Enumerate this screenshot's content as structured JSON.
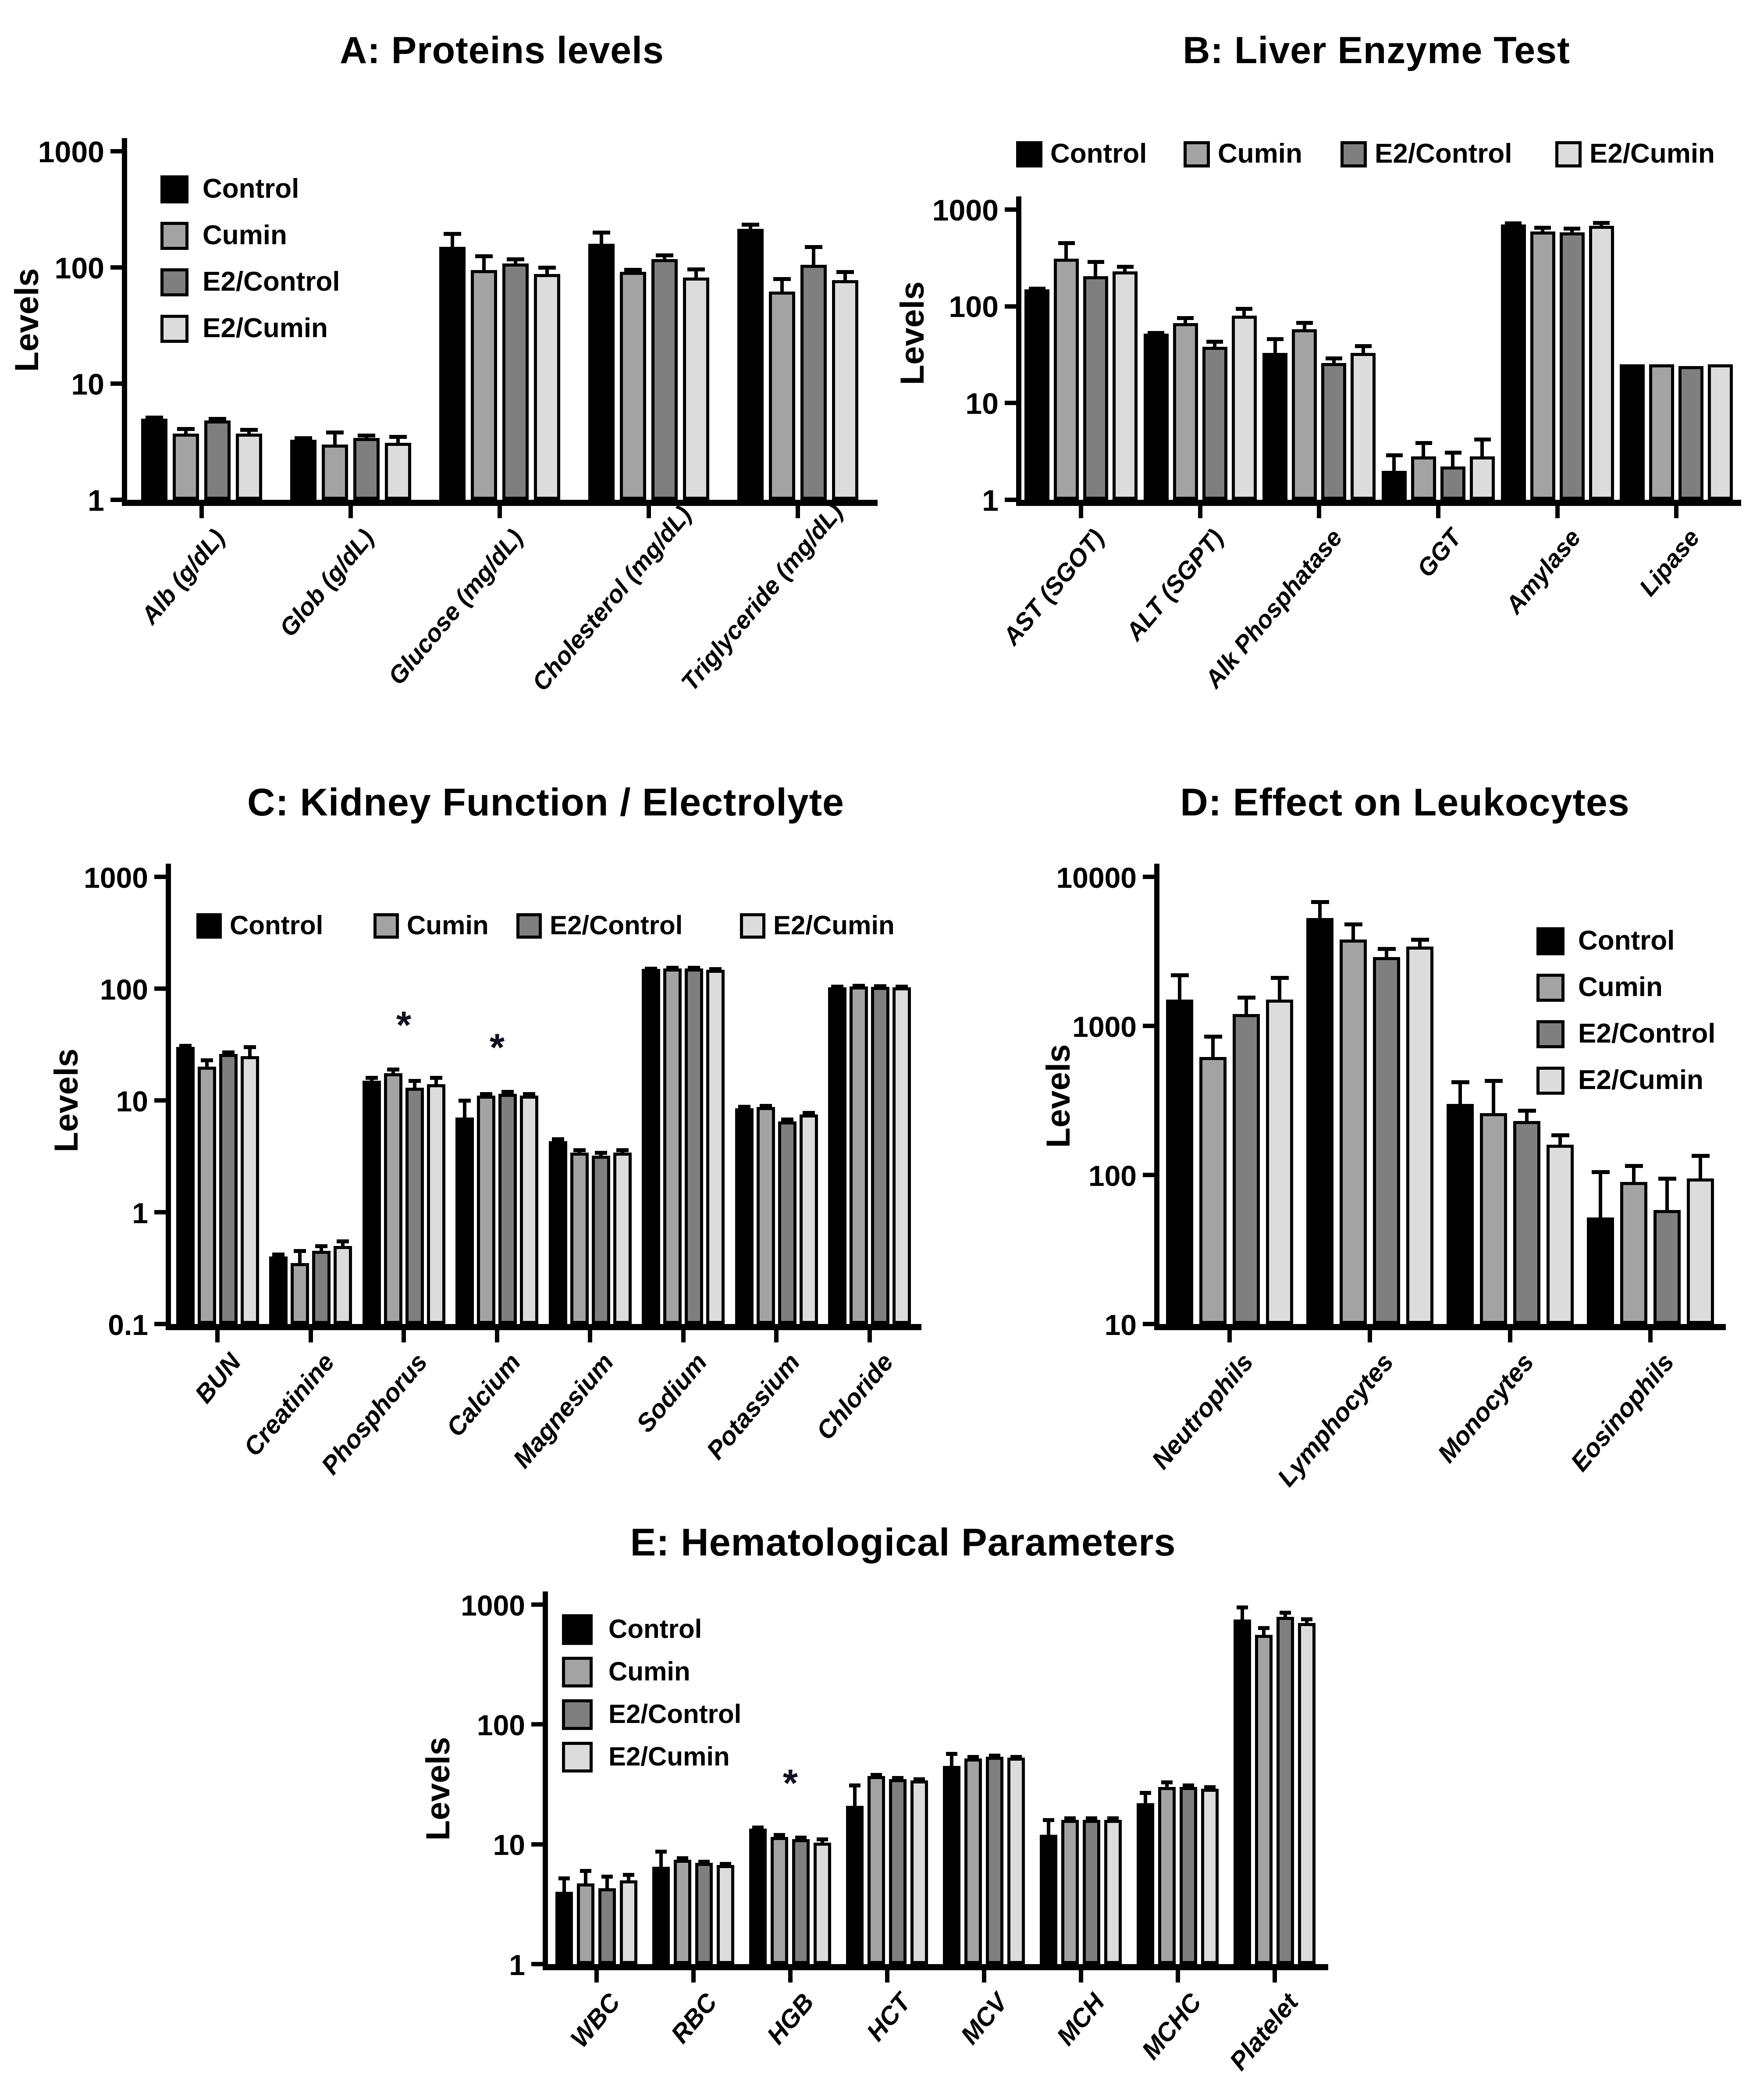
{
  "figure": {
    "background": "#ffffff",
    "text_color": "#000000",
    "annotation_symbol": "*",
    "series_colors": {
      "Control": "#000000",
      "Cumin": "#a3a3a3",
      "E2/Control": "#7f7f7f",
      "E2/Cumin": "#dcdcdc"
    }
  },
  "chart_data": [
    {
      "id": "A",
      "type": "bar",
      "title": "A: Proteins levels",
      "ylabel": "Levels",
      "yscale": "log",
      "ylim": [
        1,
        1000
      ],
      "yticks": [
        1,
        10,
        100,
        1000
      ],
      "ytick_labels": [
        "1",
        "10",
        "100",
        "1000"
      ],
      "grid": false,
      "legend": {
        "orientation": "vertical",
        "position": "inside-top-left",
        "entries": [
          "Control",
          "Cumin",
          "E2/Control",
          "E2/Cumin"
        ]
      },
      "categories": [
        "Alb (g/dL)",
        "Glob (g/dL)",
        "Glucose (mg/dL)",
        "Cholesterol (mg/dL)",
        "Triglyceride (mg/dL)"
      ],
      "series": [
        {
          "name": "Control",
          "color": "#000000",
          "values": [
            5.0,
            3.3,
            150,
            160,
            215
          ],
          "errors_upper": [
            5.1,
            3.4,
            195,
            200,
            235
          ]
        },
        {
          "name": "Cumin",
          "color": "#a3a3a3",
          "values": [
            3.7,
            3.0,
            95,
            92,
            62
          ],
          "errors_upper": [
            4.1,
            3.8,
            125,
            96,
            80
          ]
        },
        {
          "name": "E2/Control",
          "color": "#7f7f7f",
          "values": [
            4.8,
            3.4,
            108,
            118,
            105
          ],
          "errors_upper": [
            5.0,
            3.6,
            118,
            128,
            150
          ]
        },
        {
          "name": "E2/Cumin",
          "color": "#dcdcdc",
          "values": [
            3.7,
            3.1,
            88,
            82,
            78
          ],
          "errors_upper": [
            4.0,
            3.5,
            100,
            97,
            92
          ]
        }
      ],
      "annotations": []
    },
    {
      "id": "B",
      "type": "bar",
      "title": "B: Liver Enzyme Test",
      "ylabel": "Levels",
      "yscale": "log",
      "ylim": [
        1,
        1000
      ],
      "yticks": [
        1,
        10,
        100,
        1000
      ],
      "ytick_labels": [
        "1",
        "10",
        "100",
        "1000"
      ],
      "grid": false,
      "legend": {
        "orientation": "horizontal",
        "position": "above-plot",
        "entries": [
          "Control",
          "Cumin",
          "E2/Control",
          "E2/Cumin"
        ]
      },
      "categories": [
        "AST (SGOT)",
        "ALT (SGPT)",
        "Alk Phosphatase",
        "GGT",
        "Amylase",
        "Lipase"
      ],
      "series": [
        {
          "name": "Control",
          "color": "#000000",
          "values": [
            150,
            52,
            33,
            2.0,
            700,
            25
          ],
          "errors_upper": [
            152,
            53,
            46,
            2.9,
            720,
            25
          ]
        },
        {
          "name": "Cumin",
          "color": "#a3a3a3",
          "values": [
            310,
            67,
            58,
            2.8,
            590,
            25
          ],
          "errors_upper": [
            450,
            76,
            68,
            3.9,
            650,
            25
          ]
        },
        {
          "name": "E2/Control",
          "color": "#7f7f7f",
          "values": [
            205,
            38,
            26,
            2.2,
            580,
            24
          ],
          "errors_upper": [
            290,
            43,
            29,
            3.1,
            640,
            24
          ]
        },
        {
          "name": "E2/Cumin",
          "color": "#dcdcdc",
          "values": [
            230,
            80,
            33,
            2.8,
            680,
            25
          ],
          "errors_upper": [
            258,
            95,
            39,
            4.2,
            730,
            25
          ]
        }
      ],
      "annotations": []
    },
    {
      "id": "C",
      "type": "bar",
      "title": "C: Kidney Function / Electrolyte",
      "ylabel": "Levels",
      "yscale": "log",
      "ylim": [
        0.1,
        1000
      ],
      "yticks": [
        0.1,
        1,
        10,
        100,
        1000
      ],
      "ytick_labels": [
        "0.1",
        "1",
        "10",
        "100",
        "1000"
      ],
      "grid": false,
      "legend": {
        "orientation": "horizontal",
        "position": "inside-top",
        "entries": [
          "Control",
          "Cumin",
          "E2/Control",
          "E2/Cumin"
        ]
      },
      "categories": [
        "BUN",
        "Creatinine",
        "Phosphorus",
        "Calcium",
        "Magnesium",
        "Sodium",
        "Potassium",
        "Chloride"
      ],
      "series": [
        {
          "name": "Control",
          "color": "#000000",
          "values": [
            30,
            0.4,
            15,
            7,
            4.3,
            150,
            8.5,
            103
          ],
          "errors_upper": [
            31,
            0.42,
            16,
            10,
            4.5,
            152,
            8.8,
            105
          ]
        },
        {
          "name": "Cumin",
          "color": "#a3a3a3",
          "values": [
            20,
            0.35,
            17.5,
            11,
            3.4,
            152,
            8.7,
            105
          ],
          "errors_upper": [
            23,
            0.45,
            19,
            11.5,
            3.6,
            154,
            9.0,
            107
          ]
        },
        {
          "name": "E2/Control",
          "color": "#7f7f7f",
          "values": [
            26,
            0.45,
            13,
            11.5,
            3.2,
            152,
            6.5,
            104
          ],
          "errors_upper": [
            27,
            0.5,
            15,
            12,
            3.4,
            154,
            6.8,
            106
          ]
        },
        {
          "name": "E2/Cumin",
          "color": "#dcdcdc",
          "values": [
            25,
            0.5,
            14,
            11,
            3.4,
            148,
            7.5,
            103
          ],
          "errors_upper": [
            30,
            0.55,
            16,
            11.5,
            3.6,
            150,
            7.8,
            105
          ]
        }
      ],
      "annotations": [
        {
          "category": "Phosphorus",
          "text": "*"
        },
        {
          "category": "Calcium",
          "text": "*"
        }
      ]
    },
    {
      "id": "D",
      "type": "bar",
      "title": "D: Effect on Leukocytes",
      "ylabel": "Levels",
      "yscale": "log",
      "ylim": [
        10,
        10000
      ],
      "yticks": [
        10,
        100,
        1000,
        10000
      ],
      "ytick_labels": [
        "10",
        "100",
        "1000",
        "10000"
      ],
      "grid": false,
      "legend": {
        "orientation": "vertical",
        "position": "inside-top-right",
        "entries": [
          "Control",
          "Cumin",
          "E2/Control",
          "E2/Cumin"
        ]
      },
      "categories": [
        "Neutrophils",
        "Lymphocytes",
        "Monocytes",
        "Eosinophils"
      ],
      "series": [
        {
          "name": "Control",
          "color": "#000000",
          "values": [
            1500,
            5300,
            300,
            52
          ],
          "errors_upper": [
            2200,
            6800,
            420,
            105
          ]
        },
        {
          "name": "Cumin",
          "color": "#a3a3a3",
          "values": [
            620,
            3800,
            260,
            90
          ],
          "errors_upper": [
            850,
            4800,
            430,
            115
          ]
        },
        {
          "name": "E2/Control",
          "color": "#7f7f7f",
          "values": [
            1200,
            2900,
            230,
            58
          ],
          "errors_upper": [
            1550,
            3300,
            270,
            95
          ]
        },
        {
          "name": "E2/Cumin",
          "color": "#dcdcdc",
          "values": [
            1500,
            3400,
            160,
            95
          ],
          "errors_upper": [
            2100,
            3800,
            185,
            135
          ]
        }
      ],
      "annotations": []
    },
    {
      "id": "E",
      "type": "bar",
      "title": "E: Hematological Parameters",
      "ylabel": "Levels",
      "yscale": "log",
      "ylim": [
        1,
        1000
      ],
      "yticks": [
        1,
        10,
        100,
        1000
      ],
      "ytick_labels": [
        "1",
        "10",
        "100",
        "1000"
      ],
      "grid": false,
      "legend": {
        "orientation": "vertical",
        "position": "inside-top-left",
        "entries": [
          "Control",
          "Cumin",
          "E2/Control",
          "E2/Cumin"
        ]
      },
      "categories": [
        "WBC",
        "RBC",
        "HGB",
        "HCT",
        "MCV",
        "MCH",
        "MCHC",
        "Platelet"
      ],
      "series": [
        {
          "name": "Control",
          "color": "#000000",
          "values": [
            4.0,
            6.5,
            13.5,
            21,
            45,
            12,
            22,
            750
          ],
          "errors_upper": [
            5.2,
            8.7,
            13.8,
            31,
            57,
            16,
            27,
            950
          ]
        },
        {
          "name": "Cumin",
          "color": "#a3a3a3",
          "values": [
            4.7,
            7.4,
            11.5,
            37,
            52,
            16,
            30,
            560
          ],
          "errors_upper": [
            6.0,
            7.7,
            12,
            38,
            54,
            16.5,
            33,
            640
          ]
        },
        {
          "name": "E2/Control",
          "color": "#7f7f7f",
          "values": [
            4.3,
            7.0,
            11,
            35,
            54,
            16,
            30,
            790
          ],
          "errors_upper": [
            5.4,
            7.2,
            11.4,
            36,
            55,
            16.5,
            31,
            860
          ]
        },
        {
          "name": "E2/Cumin",
          "color": "#dcdcdc",
          "values": [
            5.0,
            6.7,
            10.3,
            34,
            53,
            16,
            29,
            700
          ],
          "errors_upper": [
            5.6,
            6.9,
            11,
            35,
            54,
            16.5,
            30,
            760
          ]
        }
      ],
      "annotations": [
        {
          "category": "HGB",
          "text": "*"
        }
      ]
    }
  ]
}
